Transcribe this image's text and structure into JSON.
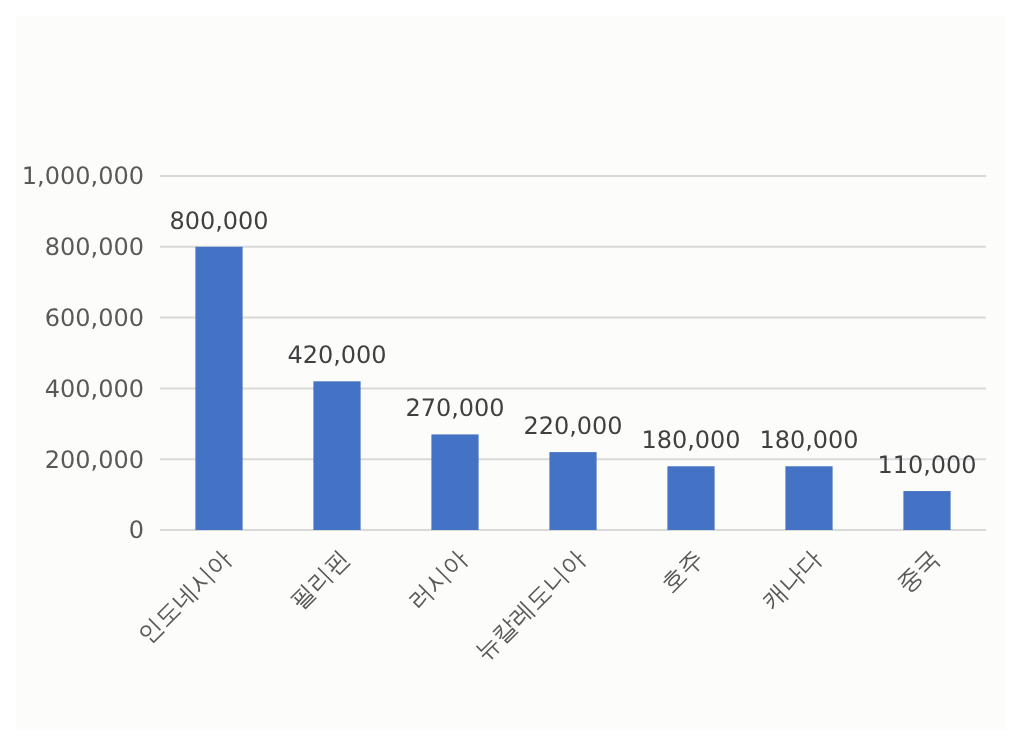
{
  "chart_data": {
    "type": "bar",
    "categories": [
      "인도네시아",
      "필리핀",
      "러시아",
      "뉴칼레도니아",
      "호주",
      "캐나다",
      "중국"
    ],
    "values": [
      800000,
      420000,
      270000,
      220000,
      180000,
      180000,
      110000
    ],
    "color": "#4472c4",
    "ylim": [
      0,
      1000000
    ],
    "yticks": [
      {
        "value": 0,
        "label": "0"
      },
      {
        "value": 200000,
        "label": "200,000"
      },
      {
        "value": 400000,
        "label": "400,000"
      },
      {
        "value": 600000,
        "label": "600,000"
      },
      {
        "value": 800000,
        "label": "800,000"
      },
      {
        "value": 1000000,
        "label": "1,000,000"
      }
    ],
    "grid": "y",
    "value_labels": [
      "800,000",
      "420,000",
      "270,000",
      "220,000",
      "180,000",
      "180,000",
      "110,000"
    ]
  }
}
